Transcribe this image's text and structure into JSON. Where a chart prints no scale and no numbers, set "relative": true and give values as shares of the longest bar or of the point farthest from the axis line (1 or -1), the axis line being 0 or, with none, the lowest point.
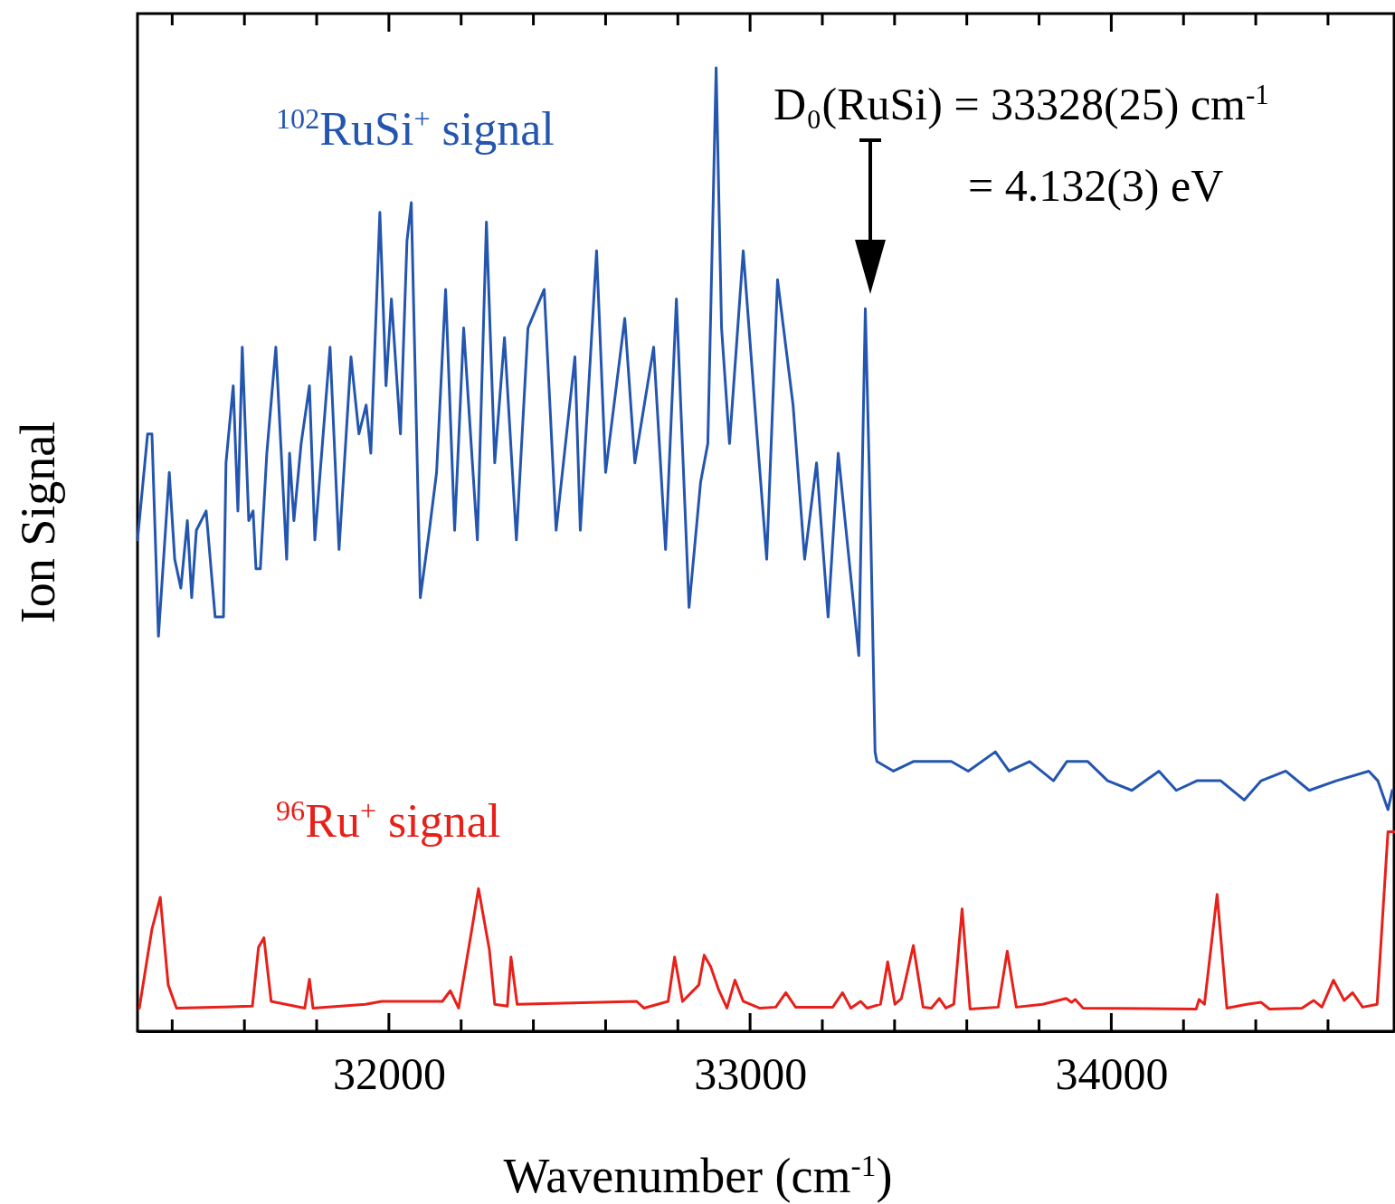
{
  "chart_data": {
    "type": "line",
    "relative": true,
    "xlabel": "Wavenumber (cm$^{-1}$)",
    "ylabel": "Ion Signal",
    "tick_labels": "x",
    "xlim": [
      31304,
      34783
    ],
    "xticks": [
      {
        "value": 31400,
        "label": null
      },
      {
        "value": 31600,
        "label": null
      },
      {
        "value": 31800,
        "label": null
      },
      32000,
      {
        "value": 32200,
        "label": null
      },
      {
        "value": 32400,
        "label": null
      },
      {
        "value": 32600,
        "label": null
      },
      {
        "value": 32800,
        "label": null
      },
      33000,
      {
        "value": 33200,
        "label": null
      },
      {
        "value": 33400,
        "label": null
      },
      {
        "value": 33600,
        "label": null
      },
      {
        "value": 33800,
        "label": null
      },
      34000,
      {
        "value": 34200,
        "label": null
      },
      {
        "value": 34400,
        "label": null
      },
      {
        "value": 34600,
        "label": null
      }
    ],
    "annotations": [
      "D₀(RuSi) = 33328(25) cm$^{-1}$",
      "=  4.132(3) eV"
    ],
    "series": [
      {
        "name": "$^{102}$RuSi$^{+}$ signal",
        "color": "#2456b0",
        "x": [
          31304,
          31332,
          31344,
          31362,
          31392,
          31407,
          31424,
          31442,
          31454,
          31467,
          31494,
          31519,
          31542,
          31549,
          31569,
          31582,
          31594,
          31612,
          31624,
          31632,
          31644,
          31662,
          31687,
          31717,
          31725,
          31737,
          31757,
          31780,
          31795,
          31837,
          31862,
          31895,
          31917,
          31937,
          31950,
          31975,
          31992,
          32007,
          32032,
          32050,
          32062,
          32087,
          32112,
          32132,
          32157,
          32182,
          32207,
          32245,
          32270,
          32293,
          32320,
          32353,
          32385,
          32430,
          32463,
          32515,
          32530,
          32575,
          32600,
          32653,
          32681,
          32733,
          32766,
          32796,
          32831,
          32863,
          32883,
          32906,
          32921,
          32943,
          32981,
          33019,
          33046,
          33076,
          33119,
          33151,
          33184,
          33216,
          33244,
          33301,
          33319,
          33334,
          33346,
          33351,
          33397,
          33452,
          33499,
          33557,
          33604,
          33679,
          33717,
          33774,
          33840,
          33877,
          33935,
          33990,
          34057,
          34132,
          34180,
          34237,
          34303,
          34368,
          34415,
          34483,
          34548,
          34623,
          34713,
          34738,
          34766,
          34778
        ],
        "values": [
          0.51,
          0.62,
          0.62,
          0.41,
          0.58,
          0.49,
          0.46,
          0.53,
          0.45,
          0.52,
          0.54,
          0.43,
          0.43,
          0.59,
          0.67,
          0.54,
          0.71,
          0.53,
          0.54,
          0.48,
          0.48,
          0.6,
          0.71,
          0.49,
          0.6,
          0.53,
          0.61,
          0.67,
          0.51,
          0.71,
          0.5,
          0.7,
          0.62,
          0.65,
          0.6,
          0.85,
          0.67,
          0.76,
          0.62,
          0.82,
          0.86,
          0.45,
          0.52,
          0.58,
          0.77,
          0.52,
          0.73,
          0.51,
          0.84,
          0.59,
          0.72,
          0.51,
          0.73,
          0.77,
          0.52,
          0.7,
          0.52,
          0.81,
          0.58,
          0.74,
          0.59,
          0.71,
          0.5,
          0.76,
          0.44,
          0.57,
          0.61,
          1.0,
          0.73,
          0.61,
          0.81,
          0.62,
          0.49,
          0.78,
          0.65,
          0.49,
          0.59,
          0.43,
          0.6,
          0.39,
          0.75,
          0.52,
          0.29,
          0.28,
          0.27,
          0.28,
          0.28,
          0.28,
          0.27,
          0.29,
          0.27,
          0.28,
          0.26,
          0.28,
          0.28,
          0.26,
          0.25,
          0.27,
          0.25,
          0.26,
          0.26,
          0.24,
          0.26,
          0.27,
          0.25,
          0.26,
          0.27,
          0.26,
          0.23,
          0.25
        ]
      },
      {
        "name": "$^{96}$Ru$^{+}$ signal",
        "color": "#e8201a",
        "x": [
          31309,
          31344,
          31367,
          31389,
          31412,
          31622,
          31639,
          31654,
          31674,
          31767,
          31780,
          31790,
          31935,
          31980,
          32148,
          32170,
          32193,
          32228,
          32248,
          32278,
          32293,
          32328,
          32338,
          32355,
          32686,
          32706,
          32773,
          32791,
          32813,
          32858,
          32873,
          32891,
          32913,
          32936,
          32958,
          32981,
          33026,
          33071,
          33099,
          33126,
          33229,
          33256,
          33279,
          33306,
          33324,
          33361,
          33381,
          33401,
          33419,
          33452,
          33479,
          33502,
          33524,
          33542,
          33564,
          33587,
          33609,
          33687,
          33712,
          33737,
          33810,
          33875,
          33890,
          33900,
          33922,
          34235,
          34243,
          34258,
          34293,
          34320,
          34375,
          34415,
          34438,
          34528,
          34560,
          34583,
          34615,
          34645,
          34668,
          34696,
          34736,
          34766,
          34783
        ],
        "values": [
          0.024,
          0.106,
          0.139,
          0.048,
          0.024,
          0.026,
          0.087,
          0.097,
          0.031,
          0.024,
          0.054,
          0.024,
          0.028,
          0.031,
          0.031,
          0.042,
          0.024,
          0.102,
          0.148,
          0.085,
          0.028,
          0.026,
          0.077,
          0.028,
          0.031,
          0.024,
          0.031,
          0.077,
          0.031,
          0.048,
          0.079,
          0.067,
          0.043,
          0.024,
          0.053,
          0.031,
          0.024,
          0.025,
          0.04,
          0.025,
          0.025,
          0.04,
          0.024,
          0.031,
          0.024,
          0.028,
          0.072,
          0.028,
          0.034,
          0.089,
          0.025,
          0.024,
          0.034,
          0.024,
          0.028,
          0.127,
          0.023,
          0.025,
          0.083,
          0.025,
          0.028,
          0.034,
          0.03,
          0.033,
          0.024,
          0.023,
          0.033,
          0.028,
          0.142,
          0.024,
          0.028,
          0.03,
          0.023,
          0.024,
          0.032,
          0.025,
          0.053,
          0.032,
          0.04,
          0.025,
          0.028,
          0.207,
          0.207
        ]
      }
    ]
  }
}
